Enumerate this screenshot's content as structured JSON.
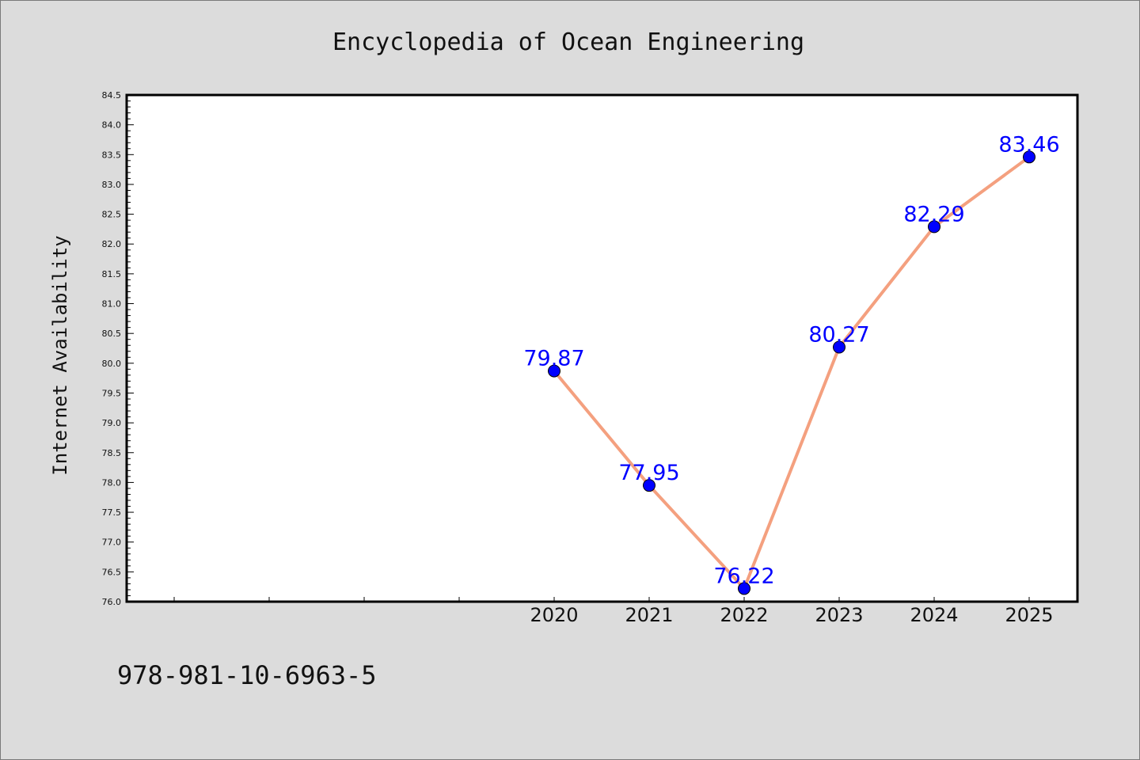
{
  "chart_data": {
    "type": "line",
    "title": "Encyclopedia of Ocean Engineering",
    "xlabel": "",
    "ylabel": "Internet Availability",
    "categories": [
      "2020",
      "2021",
      "2022",
      "2023",
      "2024",
      "2025"
    ],
    "values": [
      79.87,
      77.95,
      76.22,
      80.27,
      82.29,
      83.46
    ],
    "data_labels": [
      "79.87",
      "77.95",
      "76.22",
      "80.27",
      "82.29",
      "83.46"
    ],
    "ylim": [
      76.0,
      84.5
    ],
    "yticks": [
      "76.0",
      "76.5",
      "77.0",
      "77.5",
      "78.0",
      "78.5",
      "79.0",
      "79.5",
      "80.0",
      "80.5",
      "81.0",
      "81.5",
      "82.0",
      "82.5",
      "83.0",
      "83.5",
      "84.0",
      "84.5"
    ],
    "x_slots": 10,
    "first_category_slot": 4,
    "grid": false,
    "legend": "none",
    "line_color": "#f4a07f",
    "marker_color": "#0000ff",
    "label_color": "#0000ff"
  },
  "footer": {
    "isbn": "978-981-10-6963-5"
  }
}
